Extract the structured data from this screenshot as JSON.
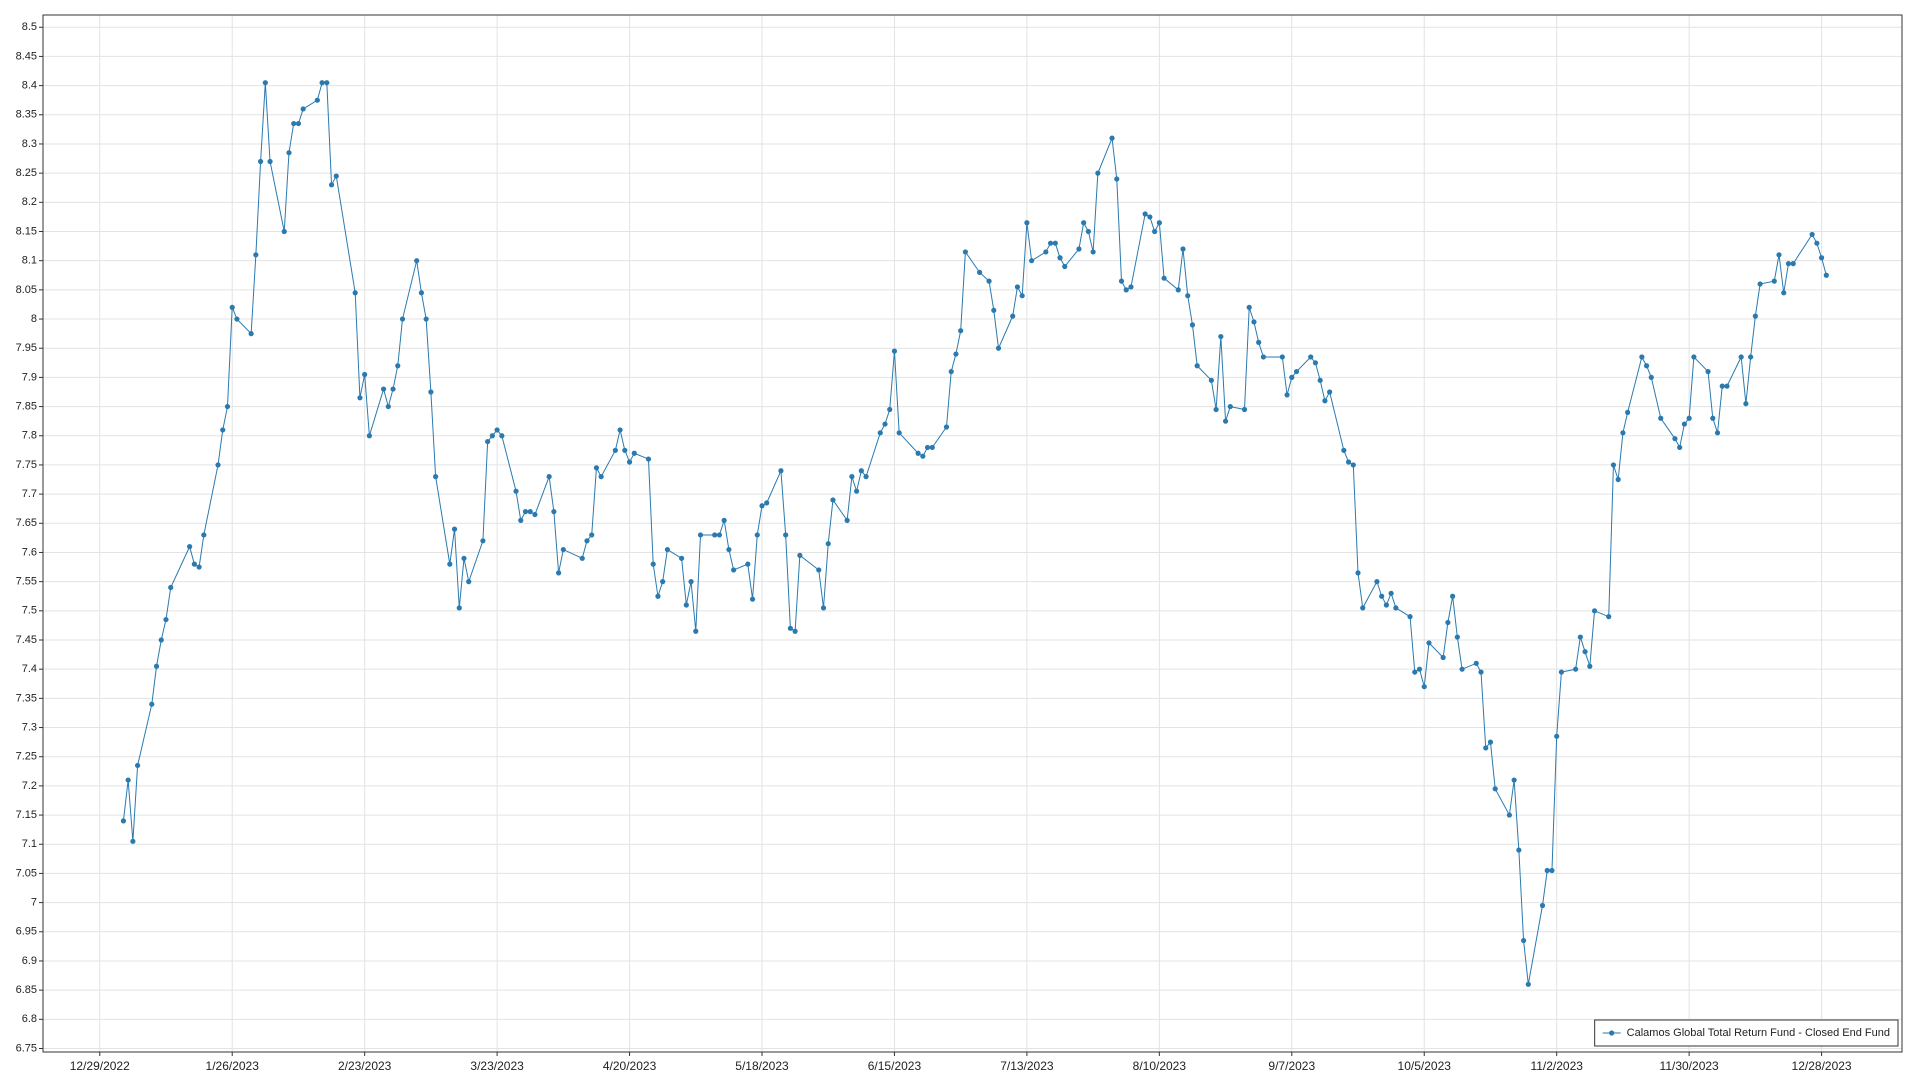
{
  "chart_data": {
    "type": "line",
    "x": [
      "1/3/2023",
      "1/4/2023",
      "1/5/2023",
      "1/6/2023",
      "1/9/2023",
      "1/10/2023",
      "1/11/2023",
      "1/12/2023",
      "1/13/2023",
      "1/17/2023",
      "1/18/2023",
      "1/19/2023",
      "1/20/2023",
      "1/23/2023",
      "1/24/2023",
      "1/25/2023",
      "1/26/2023",
      "1/27/2023",
      "1/30/2023",
      "1/31/2023",
      "2/1/2023",
      "2/2/2023",
      "2/3/2023",
      "2/6/2023",
      "2/7/2023",
      "2/8/2023",
      "2/9/2023",
      "2/10/2023",
      "2/13/2023",
      "2/14/2023",
      "2/15/2023",
      "2/16/2023",
      "2/17/2023",
      "2/21/2023",
      "2/22/2023",
      "2/23/2023",
      "2/24/2023",
      "2/27/2023",
      "2/28/2023",
      "3/1/2023",
      "3/2/2023",
      "3/3/2023",
      "3/6/2023",
      "3/7/2023",
      "3/8/2023",
      "3/9/2023",
      "3/10/2023",
      "3/13/2023",
      "3/14/2023",
      "3/15/2023",
      "3/16/2023",
      "3/17/2023",
      "3/20/2023",
      "3/21/2023",
      "3/22/2023",
      "3/23/2023",
      "3/24/2023",
      "3/27/2023",
      "3/28/2023",
      "3/29/2023",
      "3/30/2023",
      "3/31/2023",
      "4/3/2023",
      "4/4/2023",
      "4/5/2023",
      "4/6/2023",
      "4/10/2023",
      "4/11/2023",
      "4/12/2023",
      "4/13/2023",
      "4/14/2023",
      "4/17/2023",
      "4/18/2023",
      "4/19/2023",
      "4/20/2023",
      "4/21/2023",
      "4/24/2023",
      "4/25/2023",
      "4/26/2023",
      "4/27/2023",
      "4/28/2023",
      "5/1/2023",
      "5/2/2023",
      "5/3/2023",
      "5/4/2023",
      "5/5/2023",
      "5/8/2023",
      "5/9/2023",
      "5/10/2023",
      "5/11/2023",
      "5/12/2023",
      "5/15/2023",
      "5/16/2023",
      "5/17/2023",
      "5/18/2023",
      "5/19/2023",
      "5/22/2023",
      "5/23/2023",
      "5/24/2023",
      "5/25/2023",
      "5/26/2023",
      "5/30/2023",
      "5/31/2023",
      "6/1/2023",
      "6/2/2023",
      "6/5/2023",
      "6/6/2023",
      "6/7/2023",
      "6/8/2023",
      "6/9/2023",
      "6/12/2023",
      "6/13/2023",
      "6/14/2023",
      "6/15/2023",
      "6/16/2023",
      "6/20/2023",
      "6/21/2023",
      "6/22/2023",
      "6/23/2023",
      "6/26/2023",
      "6/27/2023",
      "6/28/2023",
      "6/29/2023",
      "6/30/2023",
      "7/3/2023",
      "7/5/2023",
      "7/6/2023",
      "7/7/2023",
      "7/10/2023",
      "7/11/2023",
      "7/12/2023",
      "7/13/2023",
      "7/14/2023",
      "7/17/2023",
      "7/18/2023",
      "7/19/2023",
      "7/20/2023",
      "7/21/2023",
      "7/24/2023",
      "7/25/2023",
      "7/26/2023",
      "7/27/2023",
      "7/28/2023",
      "7/31/2023",
      "8/1/2023",
      "8/2/2023",
      "8/3/2023",
      "8/4/2023",
      "8/7/2023",
      "8/8/2023",
      "8/9/2023",
      "8/10/2023",
      "8/11/2023",
      "8/14/2023",
      "8/15/2023",
      "8/16/2023",
      "8/17/2023",
      "8/18/2023",
      "8/21/2023",
      "8/22/2023",
      "8/23/2023",
      "8/24/2023",
      "8/25/2023",
      "8/28/2023",
      "8/29/2023",
      "8/30/2023",
      "8/31/2023",
      "9/1/2023",
      "9/5/2023",
      "9/6/2023",
      "9/7/2023",
      "9/8/2023",
      "9/11/2023",
      "9/12/2023",
      "9/13/2023",
      "9/14/2023",
      "9/15/2023",
      "9/18/2023",
      "9/19/2023",
      "9/20/2023",
      "9/21/2023",
      "9/22/2023",
      "9/25/2023",
      "9/26/2023",
      "9/27/2023",
      "9/28/2023",
      "9/29/2023",
      "10/2/2023",
      "10/3/2023",
      "10/4/2023",
      "10/5/2023",
      "10/6/2023",
      "10/9/2023",
      "10/10/2023",
      "10/11/2023",
      "10/12/2023",
      "10/13/2023",
      "10/16/2023",
      "10/17/2023",
      "10/18/2023",
      "10/19/2023",
      "10/20/2023",
      "10/23/2023",
      "10/24/2023",
      "10/25/2023",
      "10/26/2023",
      "10/27/2023",
      "10/30/2023",
      "10/31/2023",
      "11/1/2023",
      "11/2/2023",
      "11/3/2023",
      "11/6/2023",
      "11/7/2023",
      "11/8/2023",
      "11/9/2023",
      "11/10/2023",
      "11/13/2023",
      "11/14/2023",
      "11/15/2023",
      "11/16/2023",
      "11/17/2023",
      "11/20/2023",
      "11/21/2023",
      "11/22/2023",
      "11/24/2023",
      "11/27/2023",
      "11/28/2023",
      "11/29/2023",
      "11/30/2023",
      "12/1/2023",
      "12/4/2023",
      "12/5/2023",
      "12/6/2023",
      "12/7/2023",
      "12/8/2023",
      "12/11/2023",
      "12/12/2023",
      "12/13/2023",
      "12/14/2023",
      "12/15/2023",
      "12/18/2023",
      "12/19/2023",
      "12/20/2023",
      "12/21/2023",
      "12/22/2023",
      "12/26/2023",
      "12/27/2023",
      "12/28/2023",
      "12/29/2023"
    ],
    "series": [
      {
        "name": "Calamos Global Total Return Fund - Closed End Fund",
        "color": "#2a7ab0",
        "values": [
          7.14,
          7.21,
          7.105,
          7.235,
          7.34,
          7.405,
          7.45,
          7.485,
          7.54,
          7.61,
          7.58,
          7.575,
          7.63,
          7.75,
          7.81,
          7.85,
          8.02,
          8.0,
          7.975,
          8.11,
          8.27,
          8.405,
          8.27,
          8.15,
          8.285,
          8.335,
          8.335,
          8.36,
          8.375,
          8.405,
          8.405,
          8.23,
          8.245,
          8.045,
          7.865,
          7.905,
          7.8,
          7.88,
          7.85,
          7.88,
          7.92,
          8.0,
          8.1,
          8.045,
          8.0,
          7.875,
          7.73,
          7.58,
          7.64,
          7.505,
          7.59,
          7.55,
          7.62,
          7.79,
          7.8,
          7.81,
          7.8,
          7.705,
          7.655,
          7.67,
          7.67,
          7.665,
          7.73,
          7.67,
          7.565,
          7.605,
          7.59,
          7.62,
          7.63,
          7.745,
          7.73,
          7.775,
          7.81,
          7.775,
          7.755,
          7.77,
          7.76,
          7.58,
          7.525,
          7.55,
          7.605,
          7.59,
          7.51,
          7.55,
          7.465,
          7.63,
          7.63,
          7.63,
          7.655,
          7.605,
          7.57,
          7.58,
          7.52,
          7.63,
          7.68,
          7.685,
          7.74,
          7.63,
          7.47,
          7.465,
          7.595,
          7.57,
          7.505,
          7.615,
          7.69,
          7.655,
          7.73,
          7.705,
          7.74,
          7.73,
          7.805,
          7.82,
          7.845,
          7.945,
          7.805,
          7.77,
          7.765,
          7.78,
          7.78,
          7.815,
          7.91,
          7.94,
          7.98,
          8.115,
          8.08,
          8.065,
          8.015,
          7.95,
          8.005,
          8.055,
          8.04,
          8.165,
          8.1,
          8.115,
          8.13,
          8.13,
          8.105,
          8.09,
          8.12,
          8.165,
          8.15,
          8.115,
          8.25,
          8.31,
          8.24,
          8.065,
          8.05,
          8.055,
          8.18,
          8.175,
          8.15,
          8.165,
          8.07,
          8.05,
          8.12,
          8.04,
          7.99,
          7.92,
          7.895,
          7.845,
          7.97,
          7.825,
          7.85,
          7.845,
          8.02,
          7.995,
          7.96,
          7.935,
          7.935,
          7.87,
          7.9,
          7.91,
          7.935,
          7.925,
          7.895,
          7.86,
          7.875,
          7.775,
          7.755,
          7.75,
          7.565,
          7.505,
          7.55,
          7.525,
          7.51,
          7.53,
          7.505,
          7.49,
          7.395,
          7.4,
          7.37,
          7.445,
          7.42,
          7.48,
          7.525,
          7.455,
          7.4,
          7.41,
          7.395,
          7.265,
          7.275,
          7.195,
          7.15,
          7.21,
          7.09,
          6.935,
          6.86,
          6.995,
          7.055,
          7.055,
          7.285,
          7.395,
          7.4,
          7.455,
          7.43,
          7.405,
          7.5,
          7.49,
          7.75,
          7.725,
          7.805,
          7.84,
          7.935,
          7.92,
          7.9,
          7.83,
          7.795,
          7.78,
          7.82,
          7.83,
          7.935,
          7.91,
          7.83,
          7.805,
          7.885,
          7.885,
          7.935,
          7.855,
          7.935,
          8.005,
          8.06,
          8.065,
          8.11,
          8.045,
          8.095,
          8.095,
          8.145,
          8.13,
          8.105,
          8.075
        ]
      }
    ],
    "xlim": [
      "12/17/2022",
      "1/14/2024"
    ],
    "xticks": [
      "12/29/2022",
      "1/26/2023",
      "2/23/2023",
      "3/23/2023",
      "4/20/2023",
      "5/18/2023",
      "6/15/2023",
      "7/13/2023",
      "8/10/2023",
      "9/7/2023",
      "10/5/2023",
      "11/2/2023",
      "11/30/2023",
      "12/28/2023"
    ],
    "ylim": [
      6.744,
      8.521
    ],
    "yticks": [
      6.75,
      6.8,
      6.85,
      6.9,
      6.95,
      7,
      7.05,
      7.1,
      7.15,
      7.2,
      7.25,
      7.3,
      7.35,
      7.4,
      7.45,
      7.5,
      7.55,
      7.6,
      7.65,
      7.7,
      7.75,
      7.8,
      7.85,
      7.9,
      7.95,
      8,
      8.05,
      8.1,
      8.15,
      8.2,
      8.25,
      8.3,
      8.35,
      8.4,
      8.45,
      8.5
    ],
    "grid": true,
    "legend": "lower right"
  }
}
